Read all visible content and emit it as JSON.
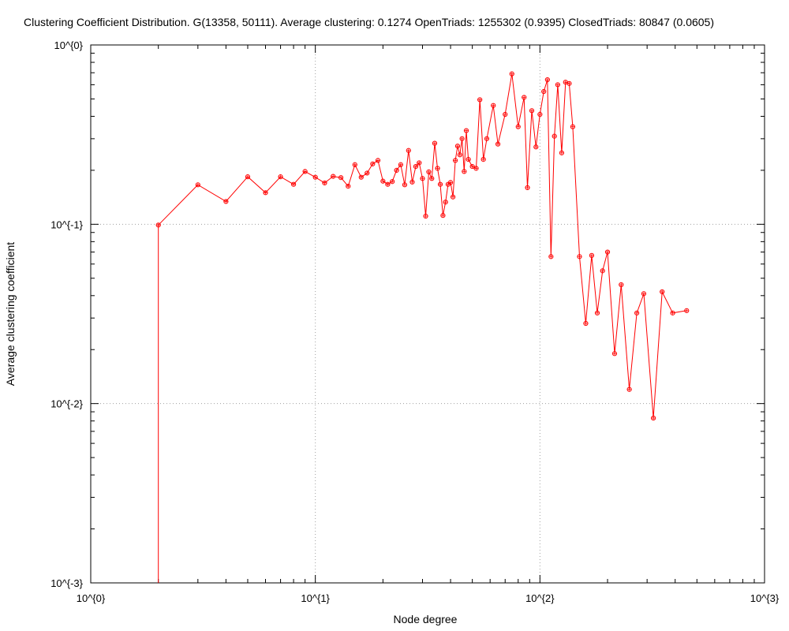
{
  "chart_data": {
    "type": "line",
    "title": "Clustering Coefficient Distribution. G(13358, 50111). Average clustering: 0.1274  OpenTriads: 1255302 (0.9395)  ClosedTriads: 80847 (0.0605)",
    "xlabel": "Node degree",
    "ylabel": "Average clustering coefficient",
    "xscale": "log",
    "yscale": "log",
    "xlim": [
      1,
      1000
    ],
    "ylim": [
      0.001,
      1
    ],
    "xticks": [
      "10^{0}",
      "10^{1}",
      "10^{2}",
      "10^{3}"
    ],
    "yticks": [
      "10^{-3}",
      "10^{-2}",
      "10^{-1}",
      "10^{0}"
    ],
    "grid": true,
    "series_color": "#ff0000",
    "series": [
      {
        "x": [
          2,
          3,
          4,
          5,
          6,
          7,
          8,
          9,
          10,
          11,
          12,
          13,
          14,
          15,
          16,
          17,
          18,
          19,
          20,
          21,
          22,
          23,
          24,
          25,
          26,
          27,
          28,
          29,
          30,
          31,
          32,
          33,
          34,
          35,
          36,
          37,
          38,
          39,
          40,
          41,
          42,
          43,
          44,
          45,
          46,
          47,
          48,
          50,
          52,
          54,
          56,
          58,
          62,
          65,
          70,
          75,
          80,
          85,
          88,
          92,
          96,
          100,
          104,
          108,
          112,
          116,
          120,
          125,
          130,
          135,
          140,
          150,
          160,
          170,
          180,
          190,
          200,
          215,
          230,
          250,
          270,
          290,
          320,
          350,
          390,
          450
        ],
        "y": [
          0.099,
          0.166,
          0.134,
          0.184,
          0.15,
          0.184,
          0.167,
          0.197,
          0.183,
          0.17,
          0.185,
          0.182,
          0.163,
          0.215,
          0.183,
          0.193,
          0.217,
          0.227,
          0.174,
          0.167,
          0.173,
          0.2,
          0.215,
          0.166,
          0.258,
          0.172,
          0.21,
          0.22,
          0.18,
          0.111,
          0.196,
          0.18,
          0.283,
          0.205,
          0.167,
          0.112,
          0.133,
          0.167,
          0.171,
          0.142,
          0.227,
          0.273,
          0.244,
          0.3,
          0.197,
          0.333,
          0.23,
          0.21,
          0.205,
          0.495,
          0.23,
          0.3,
          0.46,
          0.28,
          0.41,
          0.69,
          0.35,
          0.51,
          0.16,
          0.43,
          0.27,
          0.41,
          0.55,
          0.64,
          0.066,
          0.31,
          0.6,
          0.25,
          0.62,
          0.61,
          0.35,
          0.066,
          0.028,
          0.067,
          0.032,
          0.055,
          0.07,
          0.019,
          0.046,
          0.012,
          0.032,
          0.041,
          0.0083,
          0.042,
          0.032,
          0.033
        ]
      }
    ]
  }
}
